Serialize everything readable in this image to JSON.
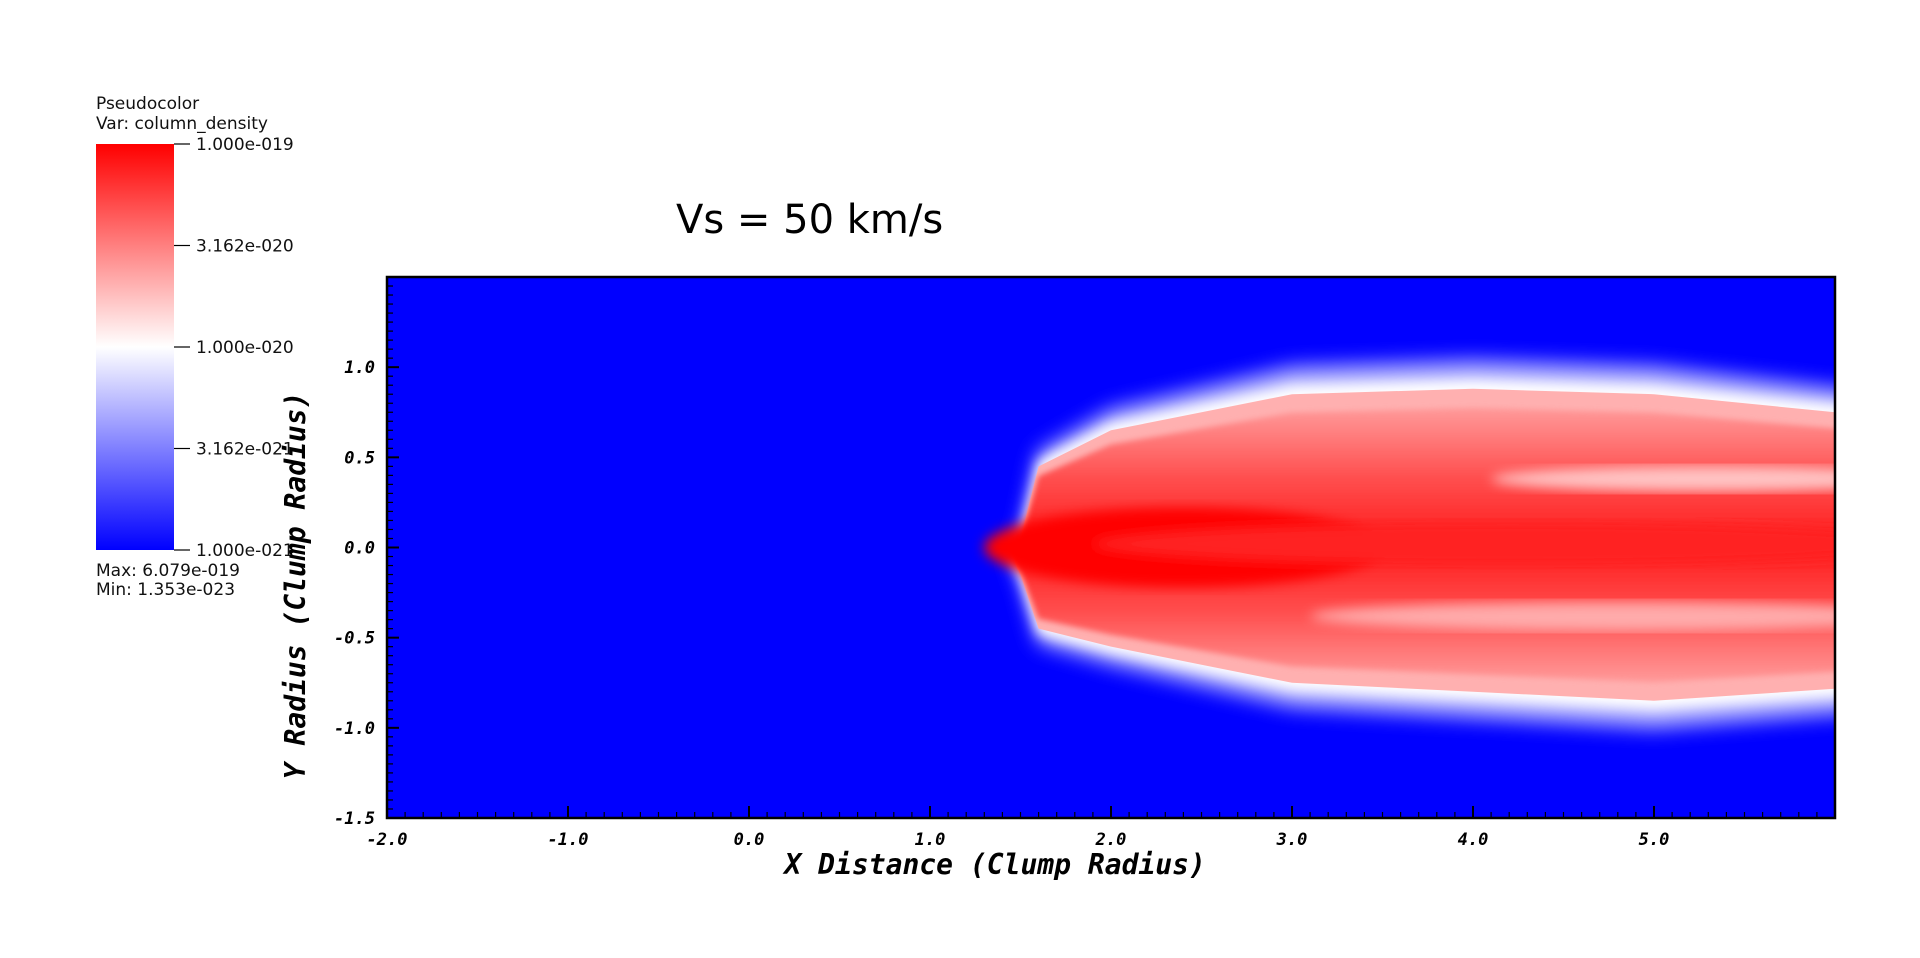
{
  "legend": {
    "plot_type": "Pseudocolor",
    "variable": "Var: column_density",
    "tick_labels": [
      "1.000e-019",
      "3.162e-020",
      "1.000e-020",
      "3.162e-021",
      "1.000e-021"
    ],
    "max_text": "Max:  6.079e-019",
    "min_text": "Min:  1.353e-023",
    "colors": {
      "high": "#ff0000",
      "mid": "#ffffff",
      "low": "#0000ff"
    }
  },
  "chart_data": {
    "type": "heatmap",
    "title": "Vs = 50 km/s",
    "xlabel": "X Distance (Clump Radius)",
    "ylabel": "Y Radius (Clump Radius)",
    "xlim": [
      -2.0,
      6.0
    ],
    "ylim": [
      -1.5,
      1.5
    ],
    "xticks": [
      "-2.0",
      "-1.0",
      "0.0",
      "1.0",
      "2.0",
      "3.0",
      "4.0",
      "5.0"
    ],
    "xtick_values": [
      -2,
      -1,
      0,
      1,
      2,
      3,
      4,
      5
    ],
    "yticks": [
      "-1.5",
      "-1.0",
      "-0.5",
      "0.0",
      "0.5",
      "1.0"
    ],
    "ytick_values": [
      -1.5,
      -1.0,
      -0.5,
      0.0,
      0.5,
      1.0
    ],
    "colormap": "blue-white-red",
    "color_scale": "log",
    "color_range": [
      1e-21,
      1e-19
    ],
    "background_color": "#0000ff",
    "plume": {
      "description": "dense clump material stripped into a tail",
      "head_x": 1.5,
      "core_axis_y": 0.0,
      "upper_edge": [
        [
          1.5,
          0.05
        ],
        [
          1.6,
          0.45
        ],
        [
          2.0,
          0.65
        ],
        [
          2.5,
          0.75
        ],
        [
          3.0,
          0.85
        ],
        [
          4.0,
          0.88
        ],
        [
          5.0,
          0.85
        ],
        [
          6.0,
          0.7
        ]
      ],
      "lower_edge": [
        [
          1.5,
          -0.15
        ],
        [
          1.6,
          -0.45
        ],
        [
          2.0,
          -0.55
        ],
        [
          2.5,
          -0.65
        ],
        [
          3.0,
          -0.75
        ],
        [
          4.0,
          -0.8
        ],
        [
          5.0,
          -0.85
        ],
        [
          6.0,
          -0.75
        ]
      ]
    }
  }
}
